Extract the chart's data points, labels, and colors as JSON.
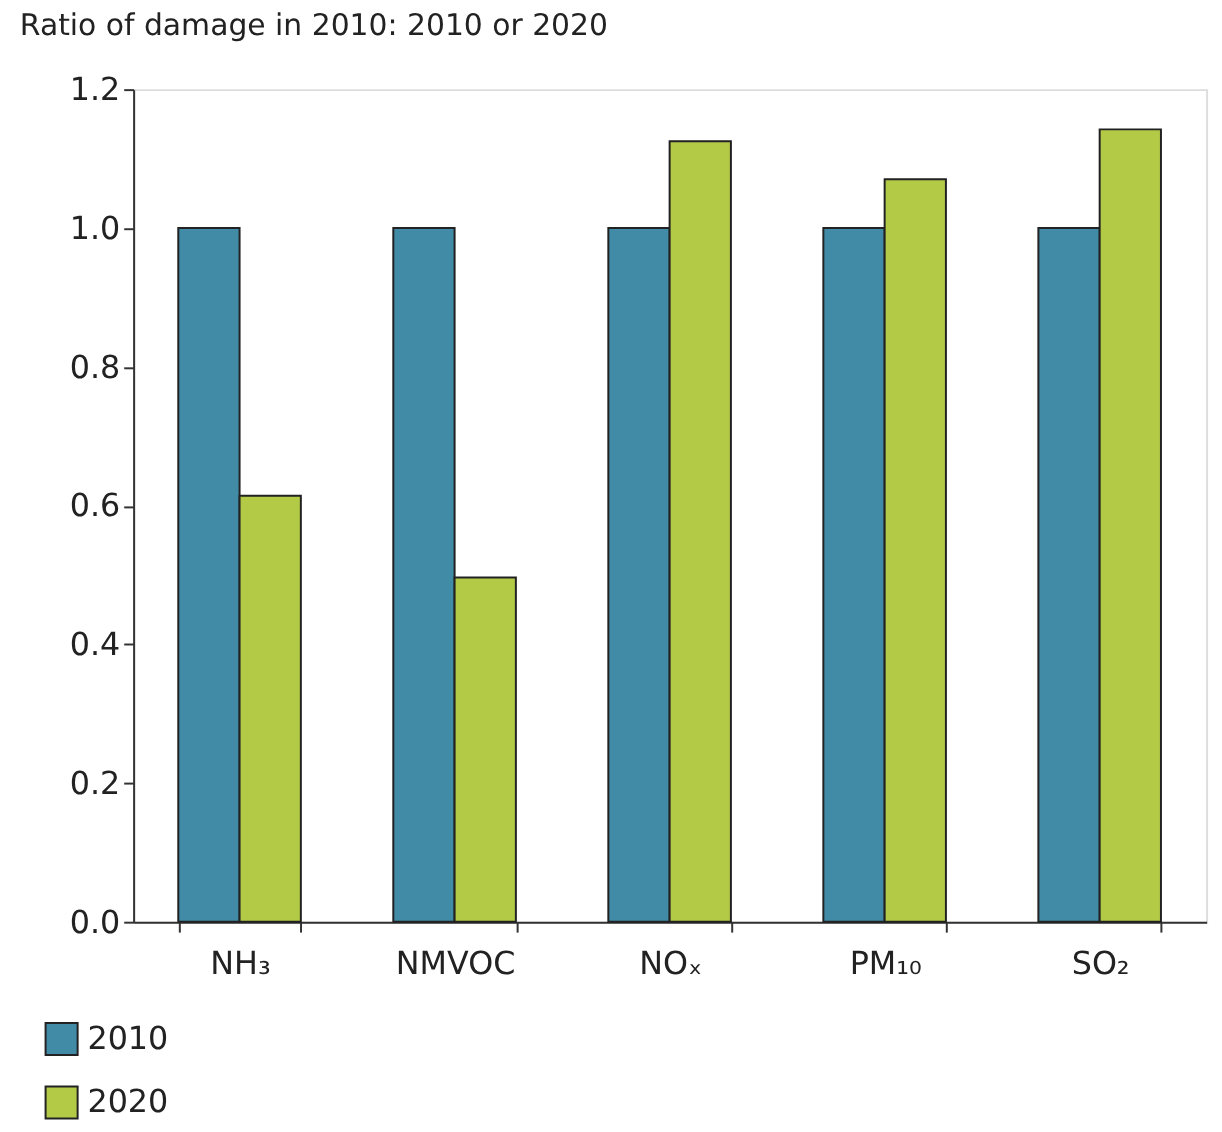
{
  "chart_data": {
    "type": "bar",
    "title": "Ratio of damage in 2010: 2010 or 2020",
    "categories": [
      "NH₃",
      "NMVOC",
      "NOₓ",
      "PM₁₀",
      "SO₂"
    ],
    "series": [
      {
        "name": "2010",
        "color": "#428ba6",
        "values": [
          1.0,
          1.0,
          1.0,
          1.0,
          1.0
        ]
      },
      {
        "name": "2020",
        "color": "#b3ca47",
        "values": [
          0.614,
          0.496,
          1.125,
          1.07,
          1.142
        ]
      }
    ],
    "ylim": [
      0,
      1.2
    ],
    "yticks": [
      {
        "value": 0,
        "label": "0.0"
      },
      {
        "value": 0.2,
        "label": "0.2"
      },
      {
        "value": 0.4,
        "label": "0.4"
      },
      {
        "value": 0.6,
        "label": "0.6"
      },
      {
        "value": 0.8,
        "label": "0.8"
      },
      {
        "value": 1.0,
        "label": "1.0"
      },
      {
        "value": 1.2,
        "label": "1.2"
      }
    ],
    "grid": false,
    "legend": "bottom left"
  }
}
